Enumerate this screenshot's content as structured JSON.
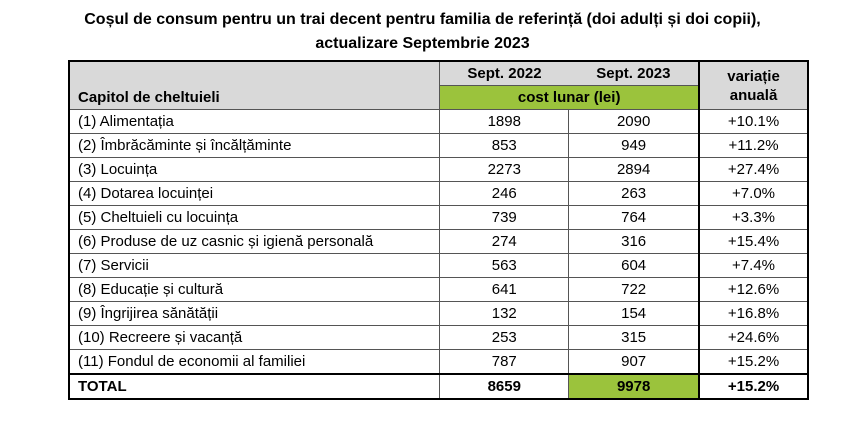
{
  "title_line1": "Coșul de consum pentru un trai decent pentru familia de referință (doi adulți și doi copii),",
  "title_line2": "actualizare Septembrie 2023",
  "header": {
    "chapter": "Capitol de cheltuieli",
    "col1": "Sept. 2022",
    "col2": "Sept. 2023",
    "cost": "cost lunar (lei)",
    "variation": "variație anuală"
  },
  "colors": {
    "green": "#9bc33c",
    "header_gray": "#d9d9d9"
  },
  "rows": [
    {
      "label": "(1) Alimentația",
      "y2022": "1898",
      "y2023": "2090",
      "var": "+10.1%"
    },
    {
      "label": "(2) Îmbrăcăminte și încălțăminte",
      "y2022": "853",
      "y2023": "949",
      "var": "+11.2%"
    },
    {
      "label": "(3) Locuința",
      "y2022": "2273",
      "y2023": "2894",
      "var": "+27.4%"
    },
    {
      "label": "(4) Dotarea locuinței",
      "y2022": "246",
      "y2023": "263",
      "var": "+7.0%"
    },
    {
      "label": "(5) Cheltuieli cu locuința",
      "y2022": "739",
      "y2023": "764",
      "var": "+3.3%"
    },
    {
      "label": "(6) Produse de uz casnic și igienă personală",
      "y2022": "274",
      "y2023": "316",
      "var": "+15.4%"
    },
    {
      "label": "(7) Servicii",
      "y2022": "563",
      "y2023": "604",
      "var": "+7.4%"
    },
    {
      "label": "(8) Educație și cultură",
      "y2022": "641",
      "y2023": "722",
      "var": "+12.6%"
    },
    {
      "label": "(9) Îngrijirea sănătății",
      "y2022": "132",
      "y2023": "154",
      "var": "+16.8%"
    },
    {
      "label": "(10) Recreere și vacanță",
      "y2022": "253",
      "y2023": "315",
      "var": "+24.6%"
    },
    {
      "label": "(11) Fondul de economii al familiei",
      "y2022": "787",
      "y2023": "907",
      "var": "+15.2%"
    }
  ],
  "total": {
    "label": "TOTAL",
    "y2022": "8659",
    "y2023": "9978",
    "var": "+15.2%"
  }
}
